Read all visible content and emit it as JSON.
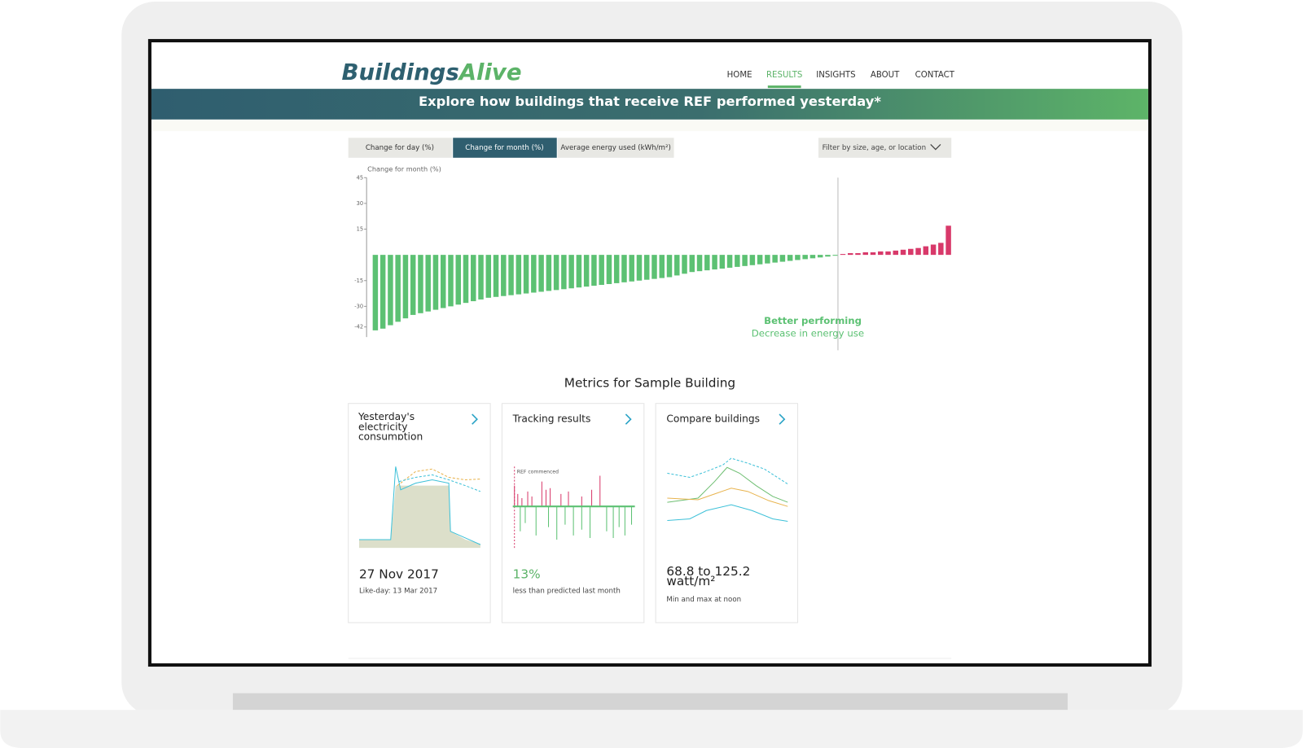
{
  "header": {
    "logo_main": "Buildings",
    "logo_accent": "Alive",
    "nav": [
      "HOME",
      "RESULTS",
      "INSIGHTS",
      "ABOUT",
      "CONTACT"
    ],
    "active_nav": "RESULTS"
  },
  "banner": "Explore how buildings that receive REF performed yesterday*",
  "tabs": [
    "Change for day (%)",
    "Change for month (%)",
    "Average energy used (kWh/m²)"
  ],
  "active_tab": "Change for month (%)",
  "filter": "Filter by size, age, or location",
  "chart_data": {
    "type": "bar",
    "y_label": "Change for month (%)",
    "values": [
      -44,
      -43,
      -41,
      -39,
      -37,
      -35,
      -34,
      -33,
      -32,
      -31,
      -30,
      -29,
      -28,
      -27,
      -26,
      -25,
      -24.5,
      -24,
      -23.5,
      -23,
      -22.5,
      -22,
      -21.5,
      -21,
      -20.5,
      -20,
      -19.5,
      -19,
      -18.5,
      -18,
      -17.5,
      -17,
      -16.5,
      -16,
      -15.5,
      -15,
      -14.5,
      -14,
      -13.5,
      -13,
      -12,
      -11,
      -10,
      -9.5,
      -9,
      -8.5,
      -8,
      -7.5,
      -7,
      -6.5,
      -6,
      -5.5,
      -5,
      -4.5,
      -4,
      -3.5,
      -3,
      -2.5,
      -2,
      -1.5,
      -1,
      -0.5,
      0.5,
      1,
      1,
      1.5,
      1.5,
      2,
      2,
      2.5,
      3,
      3.5,
      4,
      5,
      6,
      7,
      17
    ],
    "colors": {
      "decrease": "#5cc173",
      "increase": "#d8396a"
    },
    "ylim": [
      -45,
      45
    ],
    "yticks": [
      45,
      30,
      15,
      -15,
      -30,
      -42
    ],
    "annotations": [
      "Better performing",
      "Decrease in energy use"
    ]
  },
  "metrics": {
    "title": "Metrics for Sample Building",
    "cards": [
      {
        "title": "Yesterday's electricity consumption",
        "value": "27 Nov 2017",
        "note": "Like-day: 13 Mar 2017"
      },
      {
        "title": "Tracking results",
        "marker": "REF commenced",
        "value": "13%",
        "note": "less than predicted last month"
      },
      {
        "title": "Compare buildings",
        "value": "68.8 to 125.2 watt/m²",
        "note": "Min and max at noon"
      }
    ]
  }
}
